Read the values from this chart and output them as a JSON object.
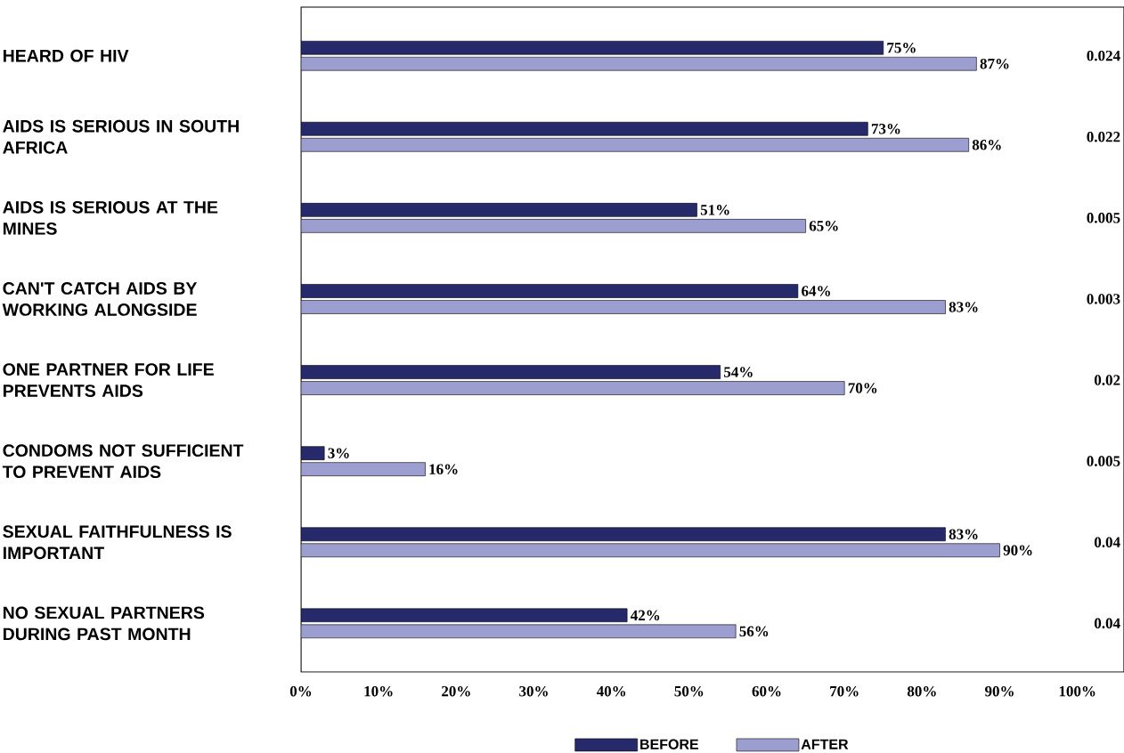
{
  "chart_data": {
    "type": "bar",
    "orientation": "horizontal",
    "categories": [
      "HEARD OF HIV",
      "AIDS IS SERIOUS IN SOUTH AFRICA",
      "AIDS IS SERIOUS AT THE MINES",
      "CAN'T CATCH AIDS BY WORKING ALONGSIDE",
      "ONE PARTNER FOR LIFE PREVENTS AIDS",
      "CONDOMS NOT SUFFICIENT TO PREVENT AIDS",
      "SEXUAL FAITHFULNESS IS IMPORTANT",
      "NO SEXUAL PARTNERS DURING PAST MONTH"
    ],
    "series": [
      {
        "name": "BEFORE",
        "color": "#262a6b",
        "values": [
          75,
          73,
          51,
          64,
          54,
          3,
          83,
          42
        ],
        "value_labels": [
          "75%",
          "73%",
          "51%",
          "64%",
          "54%",
          "3%",
          "83%",
          "42%"
        ]
      },
      {
        "name": "AFTER",
        "color": "#9c9ed0",
        "values": [
          87,
          86,
          65,
          83,
          70,
          16,
          90,
          56
        ],
        "value_labels": [
          "87%",
          "86%",
          "65%",
          "83%",
          "70%",
          "16%",
          "90%",
          "56%"
        ]
      }
    ],
    "xlim": [
      0,
      106
    ],
    "xticks": [
      {
        "value": 0,
        "label": "0%"
      },
      {
        "value": 10,
        "label": "10%"
      },
      {
        "value": 20,
        "label": "20%"
      },
      {
        "value": 30,
        "label": "30%"
      },
      {
        "value": 40,
        "label": "40%"
      },
      {
        "value": 50,
        "label": "50%"
      },
      {
        "value": 60,
        "label": "60%"
      },
      {
        "value": 70,
        "label": "70%"
      },
      {
        "value": 80,
        "label": "80%"
      },
      {
        "value": 90,
        "label": "90%"
      },
      {
        "value": 100,
        "label": "100%"
      }
    ],
    "annotations": [
      "0.024",
      "0.022",
      "0.005",
      "0.003",
      "0.02",
      "0.005",
      "0.04",
      "0.04"
    ],
    "legend": "bottom",
    "grid": false
  }
}
